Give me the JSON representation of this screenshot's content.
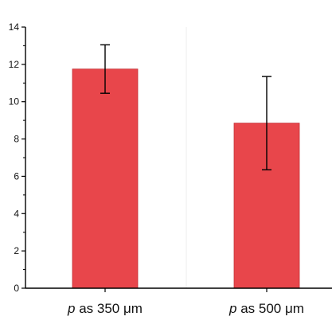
{
  "chart_data": {
    "type": "bar",
    "title": "",
    "xlabel": "",
    "ylabel": "",
    "ylim": [
      0,
      14
    ],
    "yticks": [
      0,
      2,
      4,
      6,
      8,
      10,
      12,
      14
    ],
    "categories": [
      {
        "symbol": "p",
        "text": " as 350 μm"
      },
      {
        "symbol": "p",
        "text": " as 500 μm"
      }
    ],
    "values": [
      11.75,
      8.85
    ],
    "errors": [
      1.3,
      2.5
    ],
    "bar_color": "#e8464b",
    "error_color": "#000000",
    "grid": false
  }
}
